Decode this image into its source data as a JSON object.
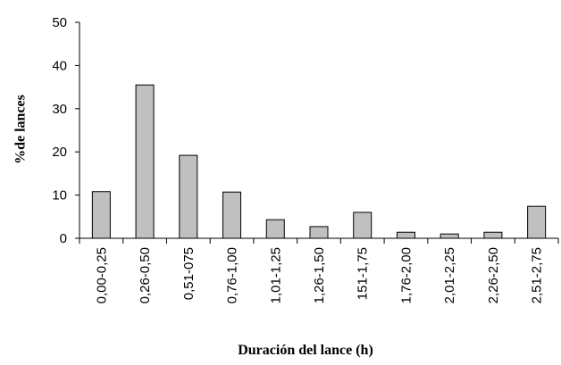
{
  "chart_data": {
    "type": "bar",
    "y_label": "%de lances",
    "x_label": "Duración del lance (h)",
    "categories": [
      "0,00-0,25",
      "0,26-0,50",
      "0,51-075",
      "0,76-1,00",
      "1,01-1,25",
      "1,26-1,50",
      "151-1,75",
      "1,76-2,00",
      "2,01-2,25",
      "2,26-2,50",
      "2,51-2,75"
    ],
    "values": [
      10.8,
      35.5,
      19.2,
      10.7,
      4.3,
      2.7,
      6.0,
      1.4,
      1.0,
      1.4,
      7.4
    ],
    "color": "#c0c0c0",
    "ylim": [
      0,
      50
    ],
    "yticks": [
      0,
      10,
      20,
      30,
      40,
      50
    ],
    "grid": false
  }
}
